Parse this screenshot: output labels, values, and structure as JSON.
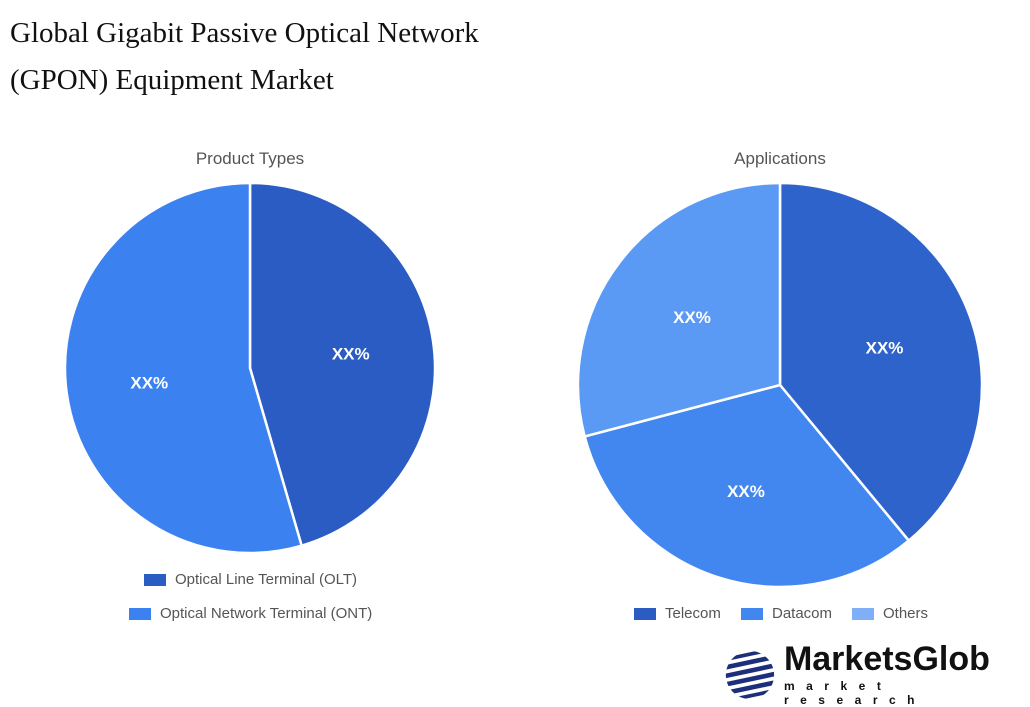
{
  "title": "Global Gigabit Passive Optical Network (GPON) Equipment Market",
  "chart_data": [
    {
      "type": "pie",
      "title": "Product Types",
      "categories": [
        "Optical Line Terminal (OLT)",
        "Optical Network Terminal (ONT)"
      ],
      "values": [
        45.5,
        54.5
      ],
      "data_labels": [
        "XX%",
        "XX%"
      ],
      "colors": [
        "#2b5cc4",
        "#3b82f0"
      ],
      "legend": "bottom"
    },
    {
      "type": "pie",
      "title": "Applications",
      "categories": [
        "Telecom",
        "Datacom",
        "Others"
      ],
      "values": [
        39.0,
        31.9,
        29.1
      ],
      "data_labels": [
        "XX%",
        "XX%",
        "XX%"
      ],
      "colors": [
        "#2b5cc4",
        "#4287f0",
        "#7fb0f7"
      ],
      "slice_colors": [
        "#2f63cc",
        "#4287f0",
        "#5a9af5"
      ],
      "legend": "bottom"
    }
  ],
  "logo": {
    "name": "MarketsGlob",
    "tagline": "market research"
  }
}
